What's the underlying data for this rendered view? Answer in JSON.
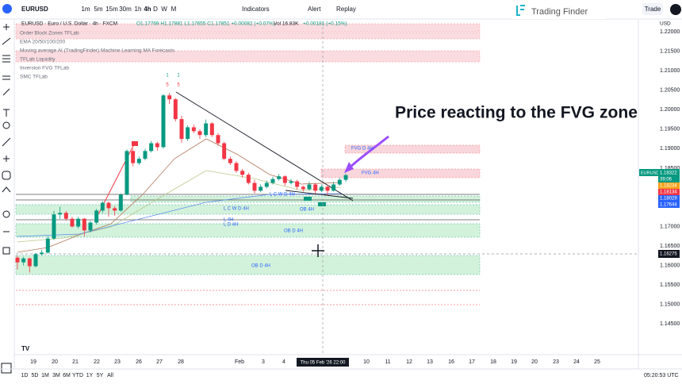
{
  "toolbar": {
    "symbol": "EURUSD",
    "intervals": [
      "1m",
      "5m",
      "15m",
      "30m",
      "1h",
      "4h",
      "D",
      "W",
      "M"
    ],
    "indicators": "Indicators",
    "alert": "Alert",
    "replay": "Replay",
    "brand": "Trading Finder",
    "trade": "Trade",
    "currency": "USD"
  },
  "legend": {
    "title": "EURUSD · Euro / U.S. Dollar · 4h · FXCM",
    "ohlc": "O1.17769 H1.17881 L1.17655 C1.17851 +0.00082 (+0.07%)",
    "volume": "Vol 16.83K",
    "change": "+0.00181 (+0.15%)"
  },
  "indicators": [
    "Order Block Zones TFLab",
    "EMA 20/50/100/200",
    "Moving average AI (TradingFinder) Machine Learning MA Forecasts",
    "TFLab Liquidity",
    "Inversion FVG TFLab",
    "SMC TFLab"
  ],
  "annotation": "Price reacting to the FVG zone",
  "pivot_marks": [
    "1",
    "1",
    "5",
    "5"
  ],
  "zone_labels": [
    "FVG D 4H",
    "FVG 4H",
    "L C W D 4H",
    "OB 4H",
    "L C W D 4H",
    "L 4H",
    "L D 4H",
    "OB D 4H",
    "OB D 4H"
  ],
  "price_labels": {
    "symbol": "EURUSD",
    "last": 1.18322,
    "countdown": "39:06",
    "levels": [
      1.18234,
      1.18134,
      1.18029,
      1.17644
    ],
    "crosshair": 1.16275
  },
  "chart_data": {
    "type": "candlestick",
    "up_color": "#089981",
    "down_color": "#f23645",
    "grid": false,
    "open": [
      1.162,
      1.1608,
      1.1618,
      1.1598,
      1.1629,
      1.1633,
      1.1669,
      1.1731,
      1.1735,
      1.172,
      1.17,
      1.172,
      1.169,
      1.171,
      1.1741,
      1.1761,
      1.1747,
      1.1741,
      1.1782,
      1.1894,
      1.1863,
      1.1874,
      1.1894,
      1.1914,
      1.1904,
      1.2037,
      1.2027,
      1.1976,
      1.1925,
      1.1955,
      1.1945,
      1.1935,
      1.1965,
      1.1935,
      1.1914,
      1.1874,
      1.1863,
      1.1843,
      1.1833,
      1.1812,
      1.1792,
      1.1802,
      1.1812,
      1.1822,
      1.1829,
      1.1812,
      1.1816,
      1.1802,
      1.1796,
      1.1808,
      1.1792,
      1.1802,
      1.1792,
      1.1808,
      1.182
    ],
    "high": [
      1.1625,
      1.1622,
      1.162,
      1.1632,
      1.164,
      1.1675,
      1.174,
      1.1751,
      1.174,
      1.1725,
      1.1725,
      1.1722,
      1.1715,
      1.1745,
      1.1765,
      1.1764,
      1.1752,
      1.1785,
      1.1898,
      1.19,
      1.188,
      1.19,
      1.192,
      1.1918,
      1.204,
      1.2043,
      1.203,
      1.1985,
      1.196,
      1.1962,
      1.195,
      1.1975,
      1.1968,
      1.194,
      1.1918,
      1.188,
      1.1868,
      1.1848,
      1.1838,
      1.182,
      1.1808,
      1.1818,
      1.1828,
      1.1835,
      1.1832,
      1.1822,
      1.182,
      1.1805,
      1.1815,
      1.1812,
      1.1808,
      1.1806,
      1.1815,
      1.1825,
      1.1836
    ],
    "low": [
      1.159,
      1.16,
      1.1582,
      1.1595,
      1.1625,
      1.163,
      1.1665,
      1.172,
      1.1715,
      1.1698,
      1.1695,
      1.1675,
      1.1685,
      1.1705,
      1.1735,
      1.1725,
      1.1728,
      1.1738,
      1.178,
      1.1855,
      1.1858,
      1.187,
      1.189,
      1.1895,
      1.19,
      1.2015,
      1.197,
      1.1915,
      1.192,
      1.194,
      1.1925,
      1.193,
      1.193,
      1.1908,
      1.187,
      1.1858,
      1.1838,
      1.1825,
      1.1808,
      1.1785,
      1.1788,
      1.1798,
      1.1808,
      1.1818,
      1.1805,
      1.1808,
      1.1795,
      1.179,
      1.1792,
      1.1785,
      1.1788,
      1.178,
      1.179,
      1.1805,
      1.1815
    ],
    "close": [
      1.1608,
      1.1618,
      1.1598,
      1.1629,
      1.1633,
      1.1669,
      1.1731,
      1.1735,
      1.172,
      1.17,
      1.172,
      1.169,
      1.171,
      1.1741,
      1.1761,
      1.1747,
      1.1741,
      1.1782,
      1.1894,
      1.1863,
      1.1874,
      1.1894,
      1.1914,
      1.1904,
      1.2037,
      1.2027,
      1.1976,
      1.1925,
      1.1955,
      1.1945,
      1.1935,
      1.1965,
      1.1935,
      1.1914,
      1.1874,
      1.1863,
      1.1843,
      1.1833,
      1.1812,
      1.1792,
      1.1802,
      1.1812,
      1.1822,
      1.1829,
      1.1812,
      1.1816,
      1.1802,
      1.1796,
      1.1808,
      1.1792,
      1.1802,
      1.1792,
      1.1808,
      1.182,
      1.1832
    ],
    "ylim": [
      1.1385,
      1.2225
    ],
    "yticks": [
      {
        "value": 1.22,
        "label": "1.22000"
      },
      {
        "value": 1.215,
        "label": "1.21500"
      },
      {
        "value": 1.21,
        "label": "1.21000"
      },
      {
        "value": 1.205,
        "label": "1.20500"
      },
      {
        "value": 1.2,
        "label": "1.20000"
      },
      {
        "value": 1.195,
        "label": "1.19500"
      },
      {
        "value": 1.19,
        "label": "1.19000"
      },
      {
        "value": 1.185,
        "label": "1.18500"
      },
      {
        "value": 1.17,
        "label": "1.17000"
      },
      {
        "value": 1.165,
        "label": "1.16500"
      },
      {
        "value": 1.16,
        "label": "1.16000"
      },
      {
        "value": 1.155,
        "label": "1.15500"
      },
      {
        "value": 1.15,
        "label": "1.15000"
      },
      {
        "value": 1.145,
        "label": "1.14500"
      }
    ],
    "x_labels": [
      "19",
      "20",
      "21",
      "22",
      "23",
      "26",
      "27",
      "28",
      "Feb",
      "3",
      "4",
      "Thu 05 Feb '26  22:00",
      "10",
      "11",
      "12",
      "13",
      "16",
      "17",
      "18",
      "19",
      "20",
      "23",
      "24",
      "25"
    ]
  },
  "bottom_bar": {
    "ranges": [
      "1D",
      "5D",
      "1M",
      "3M",
      "6M",
      "YTD",
      "1Y",
      "5Y",
      "All"
    ],
    "clock": "05:20:53 UTC"
  }
}
